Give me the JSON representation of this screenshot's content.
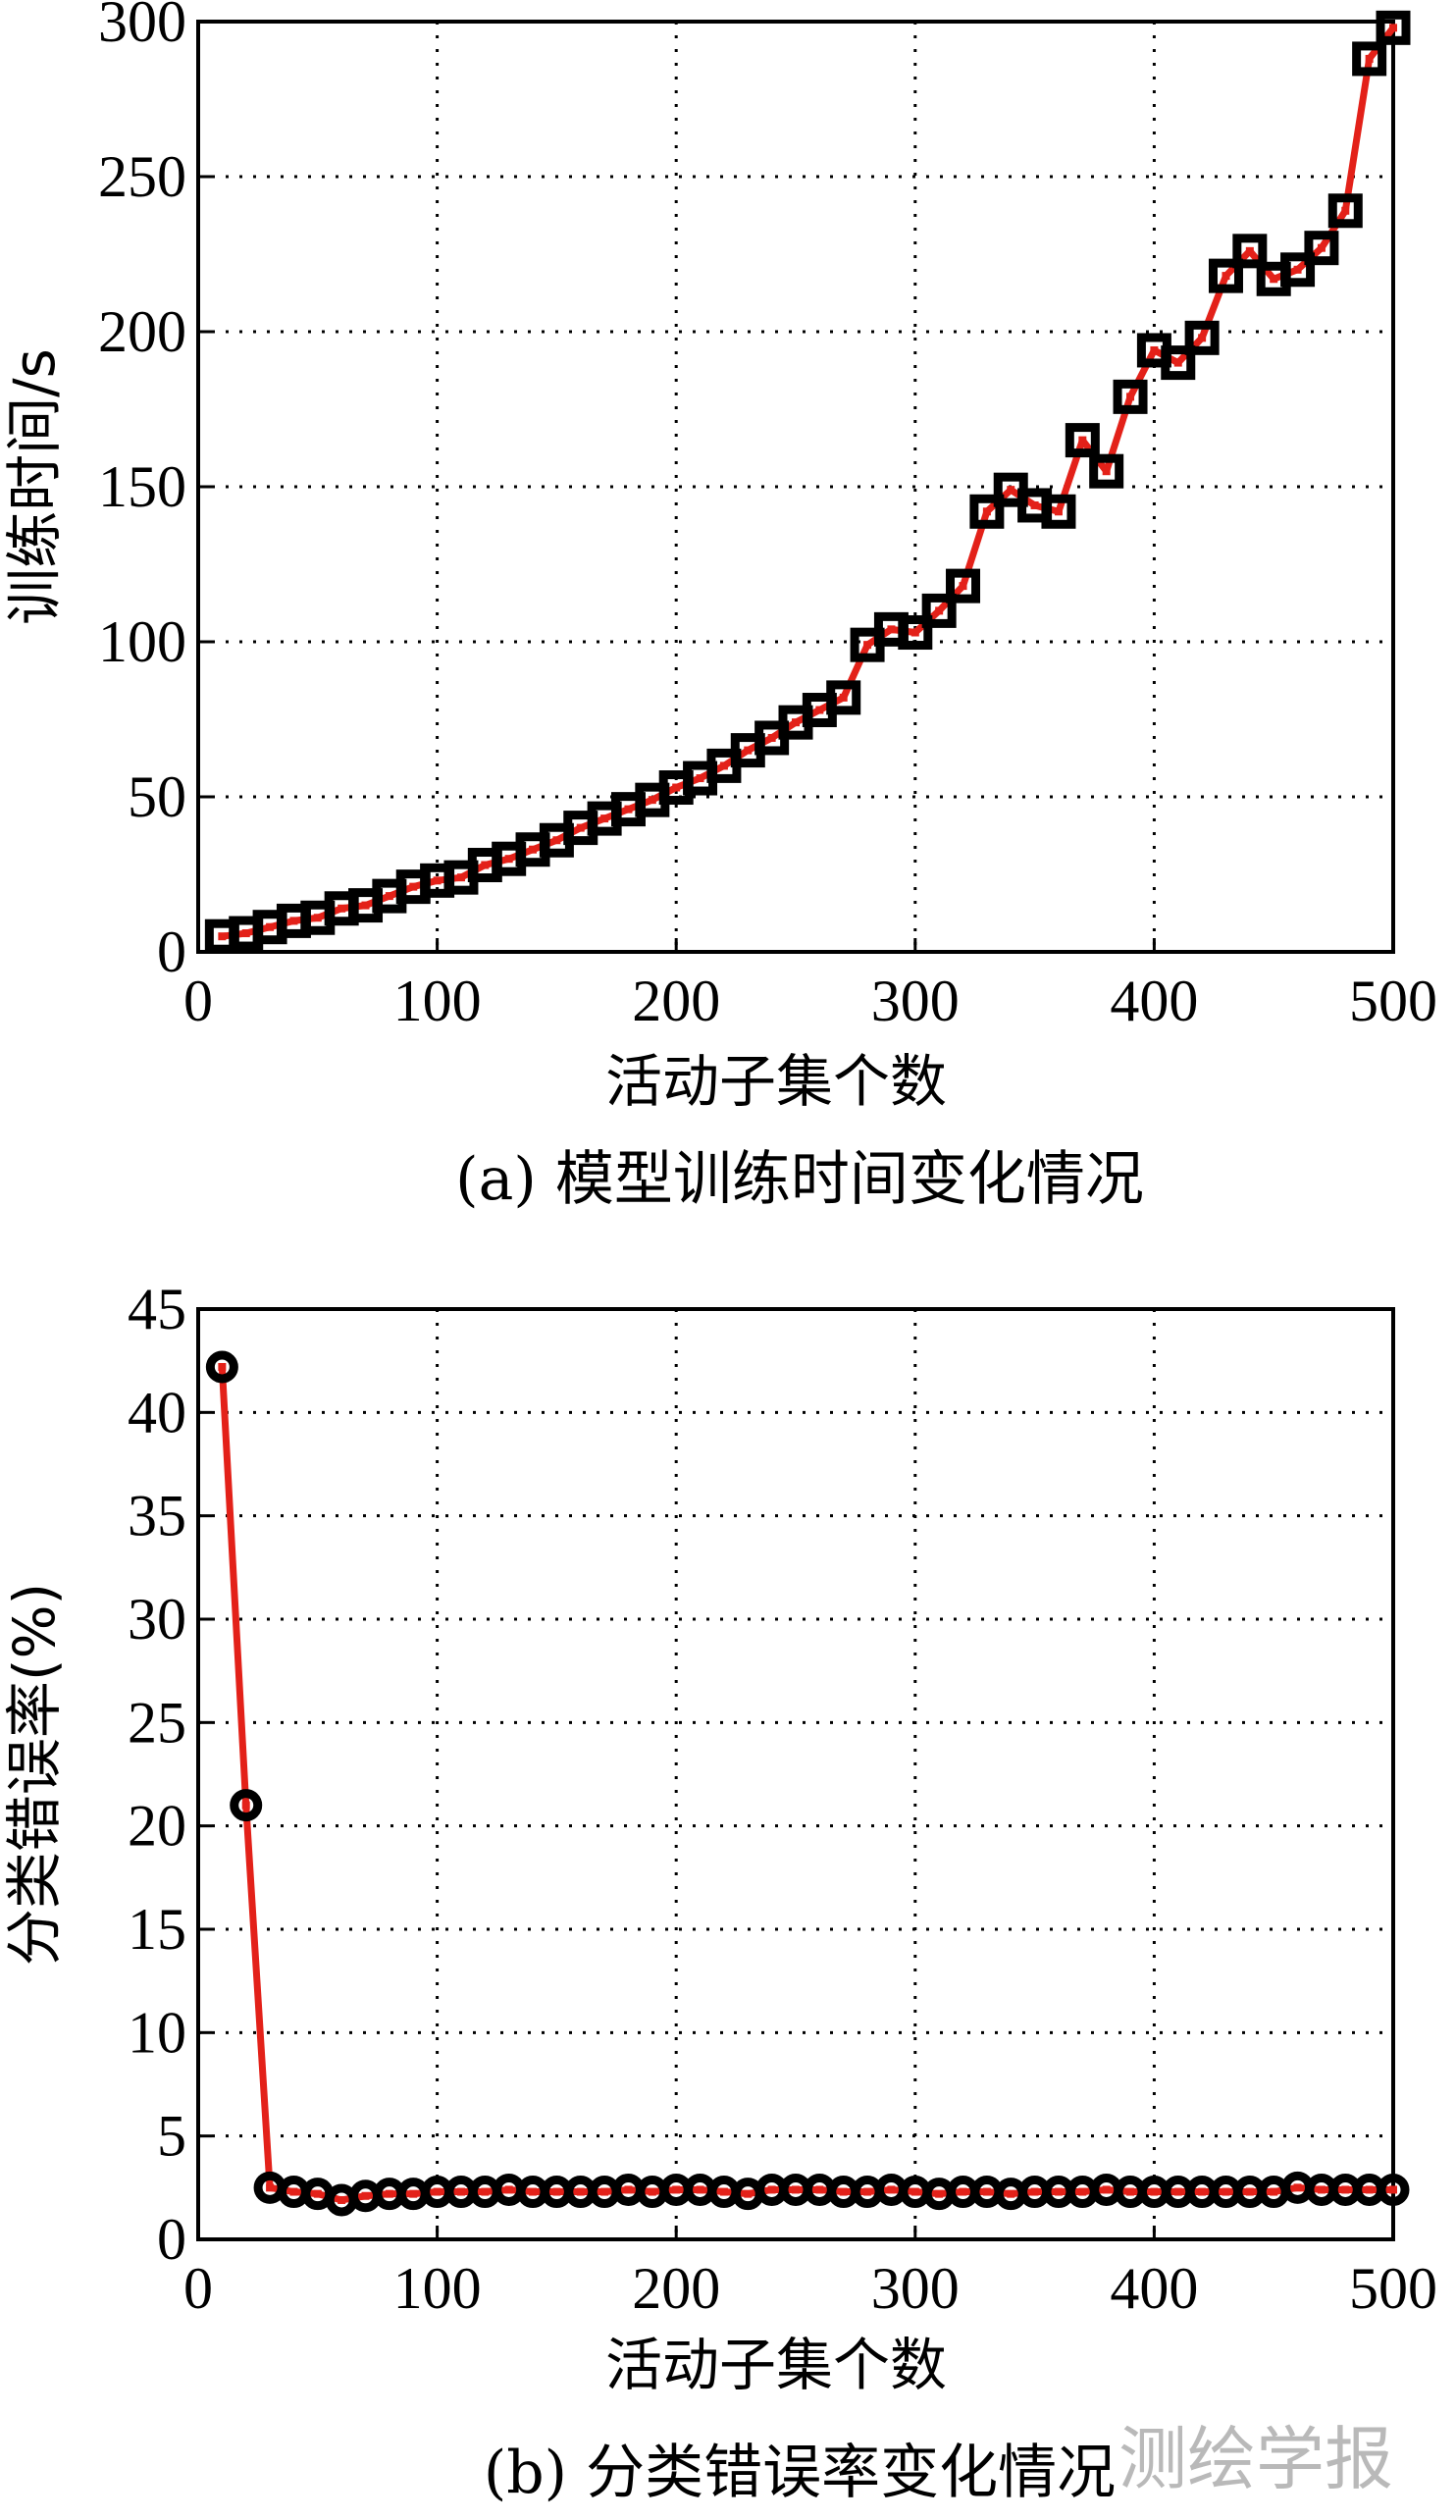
{
  "watermark": "测绘学报",
  "chart_data": [
    {
      "type": "line",
      "caption": "(a) 模型训练时间变化情况",
      "xlabel": "活动子集个数",
      "ylabel": "训练时间/s",
      "xlim": [
        0,
        500
      ],
      "ylim": [
        0,
        300
      ],
      "xticks": [
        0,
        100,
        200,
        300,
        400,
        500
      ],
      "yticks": [
        0,
        50,
        100,
        150,
        200,
        250,
        300
      ],
      "grid": true,
      "marker": "square",
      "line_color": "#e32119",
      "marker_color": "#000000",
      "marker_center_color": "#e32119",
      "x": [
        10,
        20,
        30,
        40,
        50,
        60,
        70,
        80,
        90,
        100,
        110,
        120,
        130,
        140,
        150,
        160,
        170,
        180,
        190,
        200,
        210,
        220,
        230,
        240,
        250,
        260,
        270,
        280,
        290,
        300,
        310,
        320,
        330,
        340,
        350,
        360,
        370,
        380,
        390,
        400,
        410,
        420,
        430,
        440,
        450,
        460,
        470,
        480,
        490,
        500
      ],
      "values": [
        5,
        6,
        8,
        10,
        11,
        14,
        15,
        18,
        21,
        23,
        24,
        28,
        30,
        33,
        36,
        40,
        43,
        46,
        49,
        53,
        56,
        60,
        65,
        69,
        74,
        78,
        82,
        99,
        104,
        103,
        110,
        118,
        142,
        149,
        144,
        142,
        165,
        155,
        179,
        194,
        190,
        198,
        218,
        226,
        217,
        220,
        227,
        239,
        288,
        298
      ]
    },
    {
      "type": "line",
      "caption": "(b) 分类错误率变化情况",
      "xlabel": "活动子集个数",
      "ylabel": "分类错误率(%)",
      "xlim": [
        0,
        500
      ],
      "ylim": [
        0,
        45
      ],
      "xticks": [
        0,
        100,
        200,
        300,
        400,
        500
      ],
      "yticks": [
        0,
        5,
        10,
        15,
        20,
        25,
        30,
        35,
        40,
        45
      ],
      "grid": true,
      "marker": "circle",
      "line_color": "#e32119",
      "marker_color": "#000000",
      "marker_center_color": "#e32119",
      "x": [
        10,
        20,
        30,
        40,
        50,
        60,
        70,
        80,
        90,
        100,
        110,
        120,
        130,
        140,
        150,
        160,
        170,
        180,
        190,
        200,
        210,
        220,
        230,
        240,
        250,
        260,
        270,
        280,
        290,
        300,
        310,
        320,
        330,
        340,
        350,
        360,
        370,
        380,
        390,
        400,
        410,
        420,
        430,
        440,
        450,
        460,
        470,
        480,
        490,
        500
      ],
      "values": [
        42.2,
        21.0,
        2.5,
        2.3,
        2.2,
        1.9,
        2.1,
        2.2,
        2.2,
        2.3,
        2.3,
        2.3,
        2.4,
        2.3,
        2.3,
        2.3,
        2.3,
        2.4,
        2.3,
        2.4,
        2.4,
        2.3,
        2.2,
        2.4,
        2.4,
        2.4,
        2.3,
        2.3,
        2.4,
        2.3,
        2.2,
        2.3,
        2.3,
        2.2,
        2.3,
        2.3,
        2.3,
        2.4,
        2.3,
        2.3,
        2.3,
        2.3,
        2.3,
        2.3,
        2.3,
        2.5,
        2.4,
        2.4,
        2.4,
        2.4
      ]
    }
  ]
}
